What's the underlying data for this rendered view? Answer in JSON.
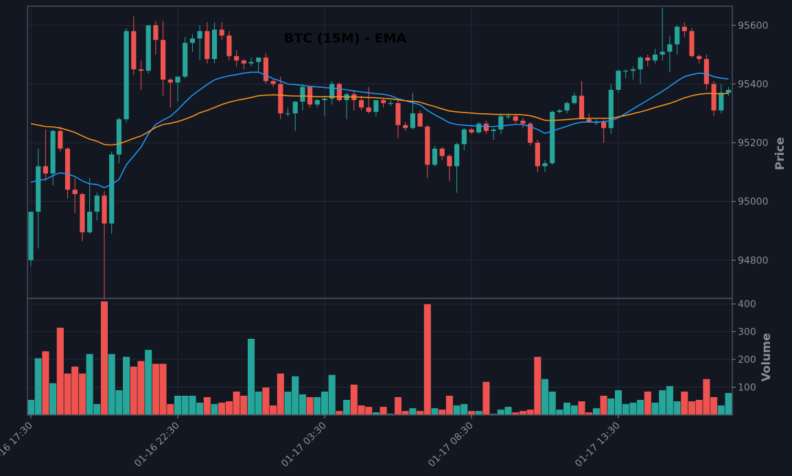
{
  "chart_data": {
    "type": "candlestick",
    "title": "BTC (15M) - EMA",
    "price_axis_label": "Price",
    "volume_axis_label": "Volume",
    "price_ylim": [
      94670,
      95665
    ],
    "price_ticks": [
      94800,
      95000,
      95200,
      95400,
      95600
    ],
    "volume_ylim": [
      0,
      420
    ],
    "volume_ticks": [
      100,
      200,
      300,
      400
    ],
    "x_ticks": [
      {
        "index": 0,
        "label": "01-16 17:30"
      },
      {
        "index": 20,
        "label": "01-16 22:30"
      },
      {
        "index": 40,
        "label": "01-17 03:30"
      },
      {
        "index": 60,
        "label": "01-17 08:30"
      },
      {
        "index": 80,
        "label": "01-17 13:30"
      }
    ],
    "grid": true,
    "colors": {
      "background": "#131722",
      "up": "#26a69a",
      "down": "#ef5350",
      "ema_fast": "#2196f3",
      "ema_slow": "#f7931a",
      "grid": "#252a36",
      "axis": "#8a8e99"
    },
    "candles": [
      [
        94800,
        94965,
        94780,
        94965
      ],
      [
        94965,
        95180,
        94840,
        95120
      ],
      [
        95120,
        95245,
        95070,
        95095
      ],
      [
        95095,
        95245,
        95055,
        95240
      ],
      [
        95240,
        95255,
        95170,
        95180
      ],
      [
        95180,
        95185,
        95010,
        95040
      ],
      [
        95040,
        95080,
        94960,
        95025
      ],
      [
        95025,
        95030,
        94865,
        94895
      ],
      [
        94895,
        95080,
        94890,
        94965
      ],
      [
        94965,
        95030,
        94935,
        95020
      ],
      [
        95020,
        95035,
        94665,
        94925
      ],
      [
        94925,
        95170,
        94890,
        95160
      ],
      [
        95160,
        95285,
        95130,
        95280
      ],
      [
        95280,
        95590,
        95270,
        95580
      ],
      [
        95580,
        95630,
        95430,
        95450
      ],
      [
        95450,
        95480,
        95380,
        95445
      ],
      [
        95445,
        95600,
        95435,
        95600
      ],
      [
        95600,
        95615,
        95500,
        95550
      ],
      [
        95550,
        95615,
        95360,
        95415
      ],
      [
        95415,
        95420,
        95320,
        95405
      ],
      [
        95405,
        95425,
        95340,
        95425
      ],
      [
        95425,
        95560,
        95420,
        95540
      ],
      [
        95540,
        95570,
        95510,
        95555
      ],
      [
        95555,
        95600,
        95480,
        95580
      ],
      [
        95580,
        95610,
        95470,
        95485
      ],
      [
        95485,
        95610,
        95470,
        95585
      ],
      [
        95585,
        95610,
        95550,
        95565
      ],
      [
        95565,
        95580,
        95480,
        95495
      ],
      [
        95495,
        95515,
        95460,
        95480
      ],
      [
        95480,
        95485,
        95450,
        95470
      ],
      [
        95470,
        95490,
        95460,
        95475
      ],
      [
        95475,
        95490,
        95440,
        95490
      ],
      [
        95490,
        95505,
        95400,
        95410
      ],
      [
        95410,
        95415,
        95390,
        95400
      ],
      [
        95400,
        95425,
        95280,
        95300
      ],
      [
        95300,
        95320,
        95290,
        95300
      ],
      [
        95300,
        95335,
        95240,
        95340
      ],
      [
        95340,
        95400,
        95310,
        95390
      ],
      [
        95390,
        95395,
        95320,
        95330
      ],
      [
        95330,
        95350,
        95320,
        95345
      ],
      [
        95345,
        95360,
        95290,
        95350
      ],
      [
        95350,
        95410,
        95330,
        95400
      ],
      [
        95400,
        95405,
        95340,
        95345
      ],
      [
        95345,
        95370,
        95280,
        95365
      ],
      [
        95365,
        95380,
        95310,
        95345
      ],
      [
        95345,
        95360,
        95310,
        95320
      ],
      [
        95320,
        95390,
        95300,
        95305
      ],
      [
        95305,
        95345,
        95290,
        95345
      ],
      [
        95345,
        95350,
        95320,
        95335
      ],
      [
        95335,
        95345,
        95325,
        95335
      ],
      [
        95335,
        95345,
        95215,
        95260
      ],
      [
        95260,
        95270,
        95240,
        95250
      ],
      [
        95250,
        95370,
        95245,
        95300
      ],
      [
        95300,
        95310,
        95255,
        95255
      ],
      [
        95255,
        95260,
        95080,
        95125
      ],
      [
        95125,
        95190,
        95120,
        95180
      ],
      [
        95180,
        95185,
        95140,
        95155
      ],
      [
        95155,
        95160,
        95070,
        95120
      ],
      [
        95120,
        95200,
        95030,
        95195
      ],
      [
        95195,
        95250,
        95175,
        95245
      ],
      [
        95245,
        95250,
        95230,
        95235
      ],
      [
        95235,
        95270,
        95230,
        95265
      ],
      [
        95265,
        95275,
        95230,
        95240
      ],
      [
        95240,
        95250,
        95210,
        95245
      ],
      [
        95245,
        95300,
        95230,
        95290
      ],
      [
        95290,
        95300,
        95280,
        95290
      ],
      [
        95290,
        95295,
        95265,
        95275
      ],
      [
        95275,
        95285,
        95250,
        95265
      ],
      [
        95265,
        95270,
        95190,
        95200
      ],
      [
        95200,
        95210,
        95100,
        95120
      ],
      [
        95120,
        95140,
        95100,
        95130
      ],
      [
        95130,
        95310,
        95125,
        95305
      ],
      [
        95305,
        95315,
        95300,
        95310
      ],
      [
        95310,
        95340,
        95300,
        95335
      ],
      [
        95335,
        95370,
        95330,
        95360
      ],
      [
        95360,
        95410,
        95280,
        95280
      ],
      [
        95280,
        95300,
        95270,
        95270
      ],
      [
        95270,
        95280,
        95260,
        95270
      ],
      [
        95270,
        95280,
        95200,
        95250
      ],
      [
        95250,
        95400,
        95230,
        95380
      ],
      [
        95380,
        95450,
        95370,
        95445
      ],
      [
        95445,
        95450,
        95420,
        95445
      ],
      [
        95445,
        95460,
        95415,
        95450
      ],
      [
        95450,
        95495,
        95400,
        95490
      ],
      [
        95490,
        95500,
        95460,
        95480
      ],
      [
        95480,
        95520,
        95470,
        95500
      ],
      [
        95500,
        95660,
        95480,
        95510
      ],
      [
        95510,
        95565,
        95440,
        95535
      ],
      [
        95535,
        95600,
        95500,
        95595
      ],
      [
        95595,
        95610,
        95560,
        95580
      ],
      [
        95580,
        95590,
        95490,
        95495
      ],
      [
        95495,
        95500,
        95470,
        95485
      ],
      [
        95485,
        95500,
        95380,
        95400
      ],
      [
        95400,
        95410,
        95290,
        95310
      ],
      [
        95310,
        95400,
        95300,
        95370
      ],
      [
        95370,
        95390,
        95360,
        95380
      ]
    ],
    "volume": [
      55,
      205,
      230,
      115,
      315,
      150,
      175,
      150,
      220,
      40,
      410,
      220,
      90,
      210,
      175,
      195,
      235,
      185,
      185,
      40,
      70,
      70,
      70,
      45,
      65,
      40,
      45,
      50,
      85,
      70,
      275,
      85,
      100,
      35,
      150,
      85,
      140,
      75,
      65,
      65,
      85,
      145,
      15,
      55,
      110,
      35,
      30,
      10,
      30,
      5,
      65,
      15,
      25,
      15,
      400,
      25,
      20,
      70,
      35,
      40,
      15,
      15,
      120,
      5,
      20,
      30,
      10,
      15,
      20,
      210,
      130,
      85,
      20,
      45,
      35,
      50,
      10,
      25,
      70,
      60,
      90,
      40,
      45,
      55,
      85,
      45,
      90,
      105,
      50,
      85,
      50,
      55,
      130,
      65,
      35,
      80
    ],
    "ema_fast": [
      95065,
      95072,
      95075,
      95088,
      95098,
      95093,
      95085,
      95070,
      95060,
      95058,
      95047,
      95058,
      95075,
      95125,
      95155,
      95185,
      95230,
      95262,
      95277,
      95290,
      95312,
      95338,
      95362,
      95380,
      95398,
      95414,
      95422,
      95428,
      95432,
      95437,
      95440,
      95440,
      95430,
      95418,
      95410,
      95400,
      95398,
      95395,
      95392,
      95390,
      95388,
      95386,
      95384,
      95380,
      95376,
      95373,
      95370,
      95367,
      95365,
      95360,
      95350,
      95343,
      95336,
      95329,
      95310,
      95295,
      95282,
      95268,
      95262,
      95260,
      95258,
      95256,
      95255,
      95255,
      95257,
      95260,
      95262,
      95262,
      95255,
      95245,
      95232,
      95240,
      95248,
      95256,
      95265,
      95270,
      95270,
      95270,
      95272,
      95275,
      95285,
      95300,
      95315,
      95330,
      95345,
      95360,
      95375,
      95392,
      95410,
      95425,
      95432,
      95437,
      95435,
      95425,
      95420,
      95417
    ],
    "ema_slow": [
      95265,
      95260,
      95255,
      95254,
      95250,
      95243,
      95235,
      95223,
      95212,
      95205,
      95194,
      95192,
      95196,
      95205,
      95215,
      95223,
      95237,
      95252,
      95262,
      95266,
      95272,
      95280,
      95290,
      95302,
      95310,
      95320,
      95330,
      95338,
      95344,
      95349,
      95354,
      95360,
      95362,
      95363,
      95362,
      95360,
      95359,
      95359,
      95358,
      95357,
      95357,
      95357,
      95357,
      95356,
      95356,
      95355,
      95354,
      95353,
      95351,
      95350,
      95346,
      95343,
      95341,
      95338,
      95330,
      95323,
      95315,
      95308,
      95305,
      95303,
      95301,
      95299,
      95298,
      95297,
      95296,
      95296,
      95296,
      95295,
      95292,
      95285,
      95276,
      95276,
      95277,
      95279,
      95281,
      95283,
      95283,
      95283,
      95283,
      95283,
      95288,
      95293,
      95299,
      95305,
      95312,
      95320,
      95327,
      95334,
      95343,
      95353,
      95360,
      95365,
      95368,
      95367,
      95367,
      95368
    ]
  }
}
